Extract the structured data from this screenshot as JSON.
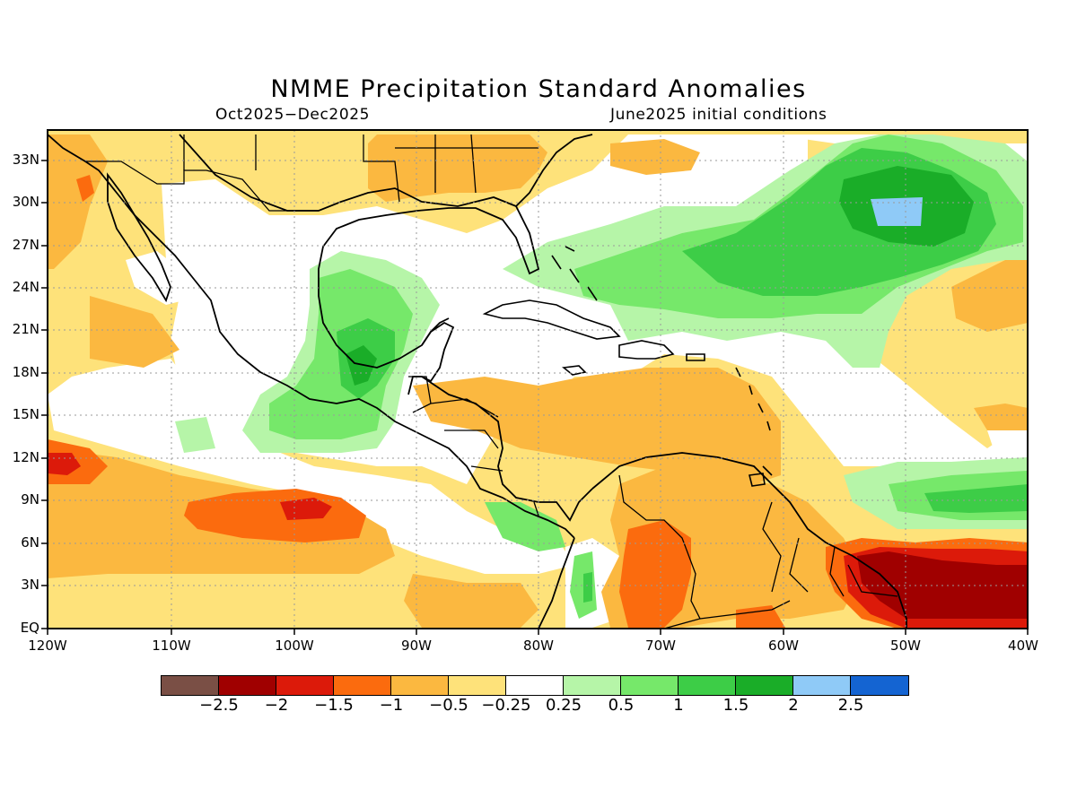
{
  "title": "NMME Precipitation Standard Anomalies",
  "subtitle_left": "Oct2025−Dec2025",
  "subtitle_right": "June2025 initial conditions",
  "lat_labels": [
    "33N",
    "30N",
    "27N",
    "24N",
    "21N",
    "18N",
    "15N",
    "12N",
    "9N",
    "6N",
    "3N",
    "EQ"
  ],
  "lon_labels": [
    "120W",
    "110W",
    "100W",
    "90W",
    "80W",
    "70W",
    "60W",
    "50W",
    "40W"
  ],
  "colorbar": {
    "colors": [
      "#7a4f45",
      "#a00000",
      "#dc1a0a",
      "#fb6b0e",
      "#fbb840",
      "#fee27a",
      "#ffffff",
      "#b6f5a8",
      "#76e86a",
      "#3dcd47",
      "#1aad28",
      "#8fcaf7",
      "#1464d2"
    ],
    "labels": [
      "−2.5",
      "−2",
      "−1.5",
      "−1",
      "−0.5",
      "−0.25",
      "0.25",
      "0.5",
      "1",
      "1.5",
      "2",
      "2.5"
    ]
  },
  "map_colors": {
    "light_yellow": "#fee27a",
    "light_orange": "#fbb840",
    "orange": "#fb6b0e",
    "red": "#dc1a0a",
    "dark_red": "#a00000",
    "light_green": "#b6f5a8",
    "green": "#76e86a",
    "mid_green": "#3dcd47",
    "dark_green": "#1aad28",
    "light_blue": "#8fcaf7"
  }
}
